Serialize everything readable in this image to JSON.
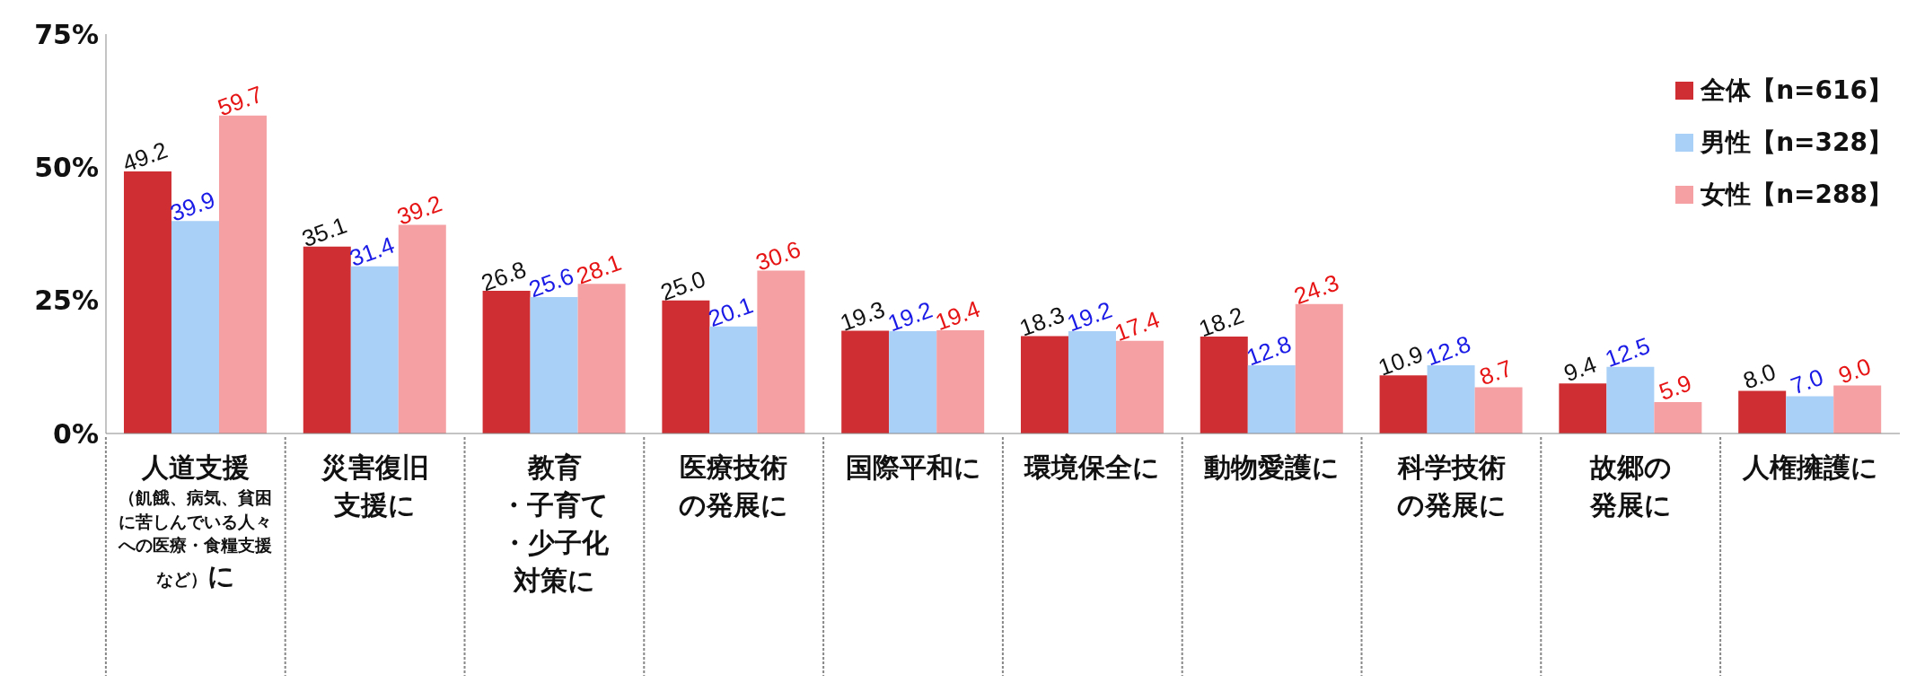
{
  "chart_data": {
    "type": "bar",
    "categories": [
      "人道支援（飢餓、病気、貧困に苦しんでいる人々への医療・食糧支援など）に",
      "災害復旧支援に",
      "教育・子育て・少子化対策に",
      "医療技術の発展に",
      "国際平和に",
      "環境保全に",
      "動物愛護に",
      "科学技術の発展に",
      "故郷の発展に",
      "人権擁護に"
    ],
    "series": [
      {
        "name": "全体【n=616】",
        "color": "#cf2f33",
        "values": [
          49.2,
          35.1,
          26.8,
          25.0,
          19.3,
          18.3,
          18.2,
          10.9,
          9.4,
          8.0
        ],
        "value_labels": [
          "49.2",
          "35.1",
          "26.8",
          "25.0",
          "19.3",
          "18.3",
          "18.2",
          "10.9",
          "9.4",
          "8.0"
        ]
      },
      {
        "name": "男性【n=328】",
        "color": "#a9d0f7",
        "values": [
          39.9,
          31.4,
          25.6,
          20.1,
          19.2,
          19.2,
          12.8,
          12.8,
          12.5,
          7.0
        ],
        "value_labels": [
          "39.9",
          "31.4",
          "25.6",
          "20.1",
          "19.2",
          "19.2",
          "12.8",
          "12.8",
          "12.5",
          "7.0"
        ]
      },
      {
        "name": "女性【n=288】",
        "color": "#f5a0a3",
        "values": [
          59.7,
          39.2,
          28.1,
          30.6,
          19.4,
          17.4,
          24.3,
          8.7,
          5.9,
          9.0
        ],
        "value_labels": [
          "59.7",
          "39.2",
          "28.1",
          "30.6",
          "19.4",
          "17.4",
          "24.3",
          "8.7",
          "5.9",
          "9.0"
        ]
      }
    ],
    "ylim": [
      0,
      75
    ],
    "yticks": [
      {
        "value": 0,
        "label": "0%"
      },
      {
        "value": 25,
        "label": "25%"
      },
      {
        "value": 50,
        "label": "50%"
      },
      {
        "value": 75,
        "label": "75%"
      }
    ],
    "legend": "top right"
  }
}
